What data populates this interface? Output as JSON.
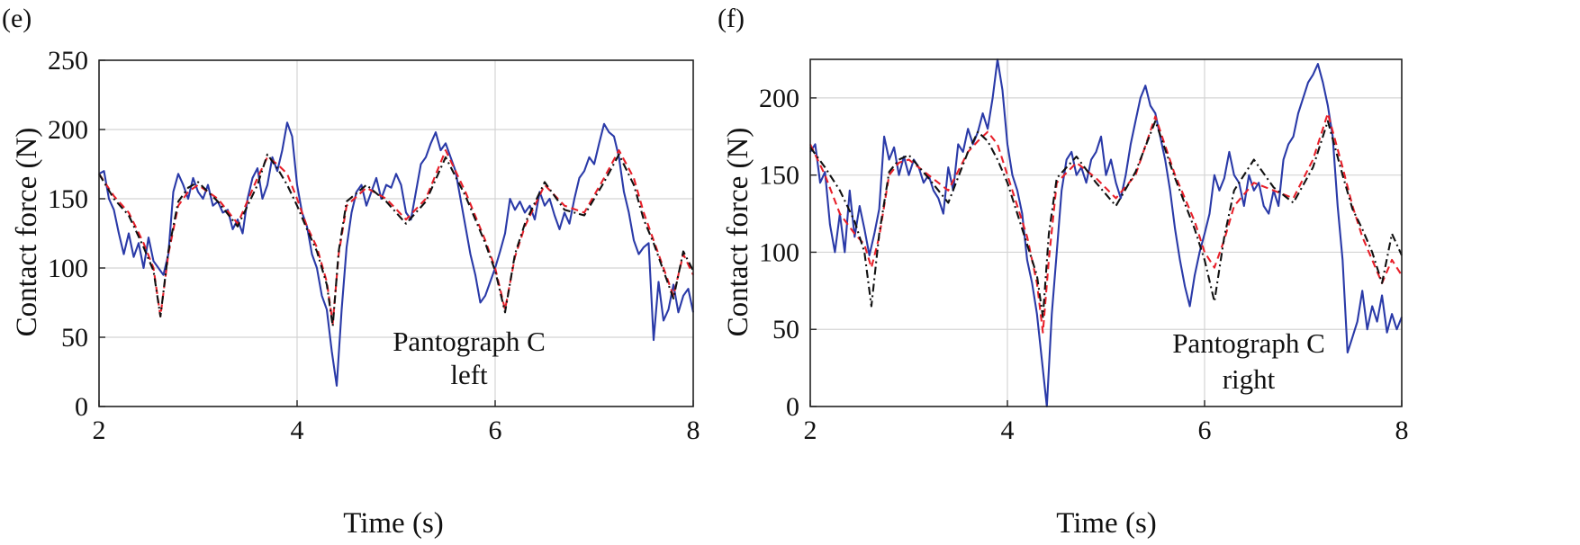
{
  "colors": {
    "series_solid": "#2a3aa8",
    "series_dashed": "#e8202a",
    "series_dashdot": "#111111",
    "grid": "#d4d4d4"
  },
  "chart_data": [
    {
      "panel_label": "(e)",
      "type": "line",
      "xlabel": "Time (s)",
      "ylabel": "Contact force (N)",
      "xlim": [
        2,
        8
      ],
      "ylim": [
        0,
        250
      ],
      "xticks": [
        2,
        4,
        6,
        8
      ],
      "yticks": [
        0,
        50,
        100,
        150,
        200,
        250
      ],
      "grid": true,
      "annotation": [
        "Pantograph C",
        "left"
      ],
      "series": [
        {
          "style": "solid",
          "x": [
            2.0,
            2.05,
            2.1,
            2.15,
            2.2,
            2.25,
            2.3,
            2.35,
            2.4,
            2.45,
            2.5,
            2.55,
            2.6,
            2.65,
            2.7,
            2.75,
            2.8,
            2.85,
            2.9,
            2.95,
            3.0,
            3.05,
            3.1,
            3.15,
            3.2,
            3.25,
            3.3,
            3.35,
            3.4,
            3.45,
            3.5,
            3.55,
            3.6,
            3.65,
            3.7,
            3.75,
            3.8,
            3.85,
            3.9,
            3.95,
            4.0,
            4.05,
            4.1,
            4.15,
            4.2,
            4.25,
            4.3,
            4.35,
            4.4,
            4.45,
            4.5,
            4.55,
            4.6,
            4.65,
            4.7,
            4.75,
            4.8,
            4.85,
            4.9,
            4.95,
            5.0,
            5.05,
            5.1,
            5.15,
            5.2,
            5.25,
            5.3,
            5.35,
            5.4,
            5.45,
            5.5,
            5.55,
            5.6,
            5.65,
            5.7,
            5.75,
            5.8,
            5.85,
            5.9,
            5.95,
            6.0,
            6.05,
            6.1,
            6.15,
            6.2,
            6.25,
            6.3,
            6.35,
            6.4,
            6.45,
            6.5,
            6.55,
            6.6,
            6.65,
            6.7,
            6.75,
            6.8,
            6.85,
            6.9,
            6.95,
            7.0,
            7.05,
            7.1,
            7.15,
            7.2,
            7.25,
            7.3,
            7.35,
            7.4,
            7.45,
            7.5,
            7.55,
            7.6,
            7.65,
            7.7,
            7.75,
            7.8,
            7.85,
            7.9,
            7.95,
            8.0
          ],
          "y": [
            168,
            170,
            150,
            142,
            125,
            110,
            125,
            108,
            118,
            100,
            122,
            105,
            100,
            95,
            110,
            155,
            168,
            160,
            150,
            165,
            155,
            150,
            160,
            145,
            148,
            140,
            142,
            128,
            135,
            125,
            150,
            165,
            172,
            150,
            160,
            180,
            170,
            185,
            205,
            195,
            160,
            140,
            130,
            110,
            100,
            80,
            70,
            40,
            15,
            70,
            115,
            140,
            155,
            160,
            145,
            155,
            165,
            150,
            160,
            158,
            168,
            160,
            140,
            135,
            155,
            175,
            180,
            190,
            198,
            185,
            190,
            180,
            170,
            150,
            130,
            110,
            95,
            75,
            80,
            90,
            100,
            112,
            125,
            150,
            142,
            148,
            140,
            145,
            135,
            155,
            145,
            150,
            138,
            128,
            140,
            132,
            150,
            165,
            170,
            180,
            175,
            190,
            204,
            198,
            195,
            180,
            155,
            140,
            120,
            110,
            115,
            118,
            48,
            90,
            62,
            70,
            88,
            68,
            80,
            85,
            68
          ]
        },
        {
          "style": "dashed",
          "x": [
            2.0,
            2.15,
            2.3,
            2.45,
            2.55,
            2.62,
            2.7,
            2.8,
            2.9,
            3.0,
            3.2,
            3.4,
            3.6,
            3.7,
            3.8,
            3.9,
            4.0,
            4.1,
            4.2,
            4.3,
            4.36,
            4.42,
            4.5,
            4.7,
            4.9,
            5.1,
            5.3,
            5.5,
            5.7,
            5.9,
            6.0,
            6.1,
            6.2,
            6.3,
            6.5,
            6.7,
            6.9,
            7.1,
            7.25,
            7.4,
            7.5,
            7.6,
            7.7,
            7.8,
            7.9,
            8.0
          ],
          "y": [
            168,
            152,
            140,
            118,
            100,
            65,
            110,
            145,
            155,
            160,
            150,
            132,
            165,
            180,
            175,
            168,
            150,
            130,
            115,
            90,
            60,
            110,
            145,
            158,
            150,
            135,
            150,
            185,
            155,
            120,
            100,
            70,
            108,
            130,
            160,
            145,
            140,
            165,
            185,
            165,
            140,
            120,
            100,
            80,
            110,
            95
          ]
        },
        {
          "style": "dashdot",
          "x": [
            2.0,
            2.15,
            2.3,
            2.45,
            2.55,
            2.62,
            2.7,
            2.8,
            2.9,
            3.0,
            3.2,
            3.4,
            3.6,
            3.7,
            3.8,
            3.9,
            4.0,
            4.1,
            4.2,
            4.3,
            4.36,
            4.42,
            4.5,
            4.7,
            4.9,
            5.1,
            5.3,
            5.5,
            5.7,
            5.9,
            6.0,
            6.1,
            6.2,
            6.3,
            6.5,
            6.7,
            6.9,
            7.1,
            7.25,
            7.4,
            7.5,
            7.6,
            7.7,
            7.8,
            7.9,
            8.0
          ],
          "y": [
            168,
            150,
            138,
            115,
            98,
            65,
            112,
            148,
            158,
            162,
            148,
            130,
            160,
            182,
            172,
            160,
            145,
            128,
            112,
            88,
            58,
            112,
            148,
            160,
            148,
            132,
            148,
            180,
            152,
            118,
            98,
            68,
            110,
            132,
            162,
            142,
            138,
            162,
            182,
            160,
            135,
            118,
            98,
            78,
            112,
            98
          ]
        }
      ]
    },
    {
      "panel_label": "(f)",
      "type": "line",
      "xlabel": "Time (s)",
      "ylabel": "Contact force (N)",
      "xlim": [
        2,
        8
      ],
      "ylim": [
        0,
        225
      ],
      "xticks": [
        2,
        4,
        6,
        8
      ],
      "yticks": [
        0,
        50,
        100,
        150,
        200
      ],
      "grid": true,
      "annotation": [
        "Pantograph C",
        "right"
      ],
      "series": [
        {
          "style": "solid",
          "x": [
            2.0,
            2.05,
            2.1,
            2.15,
            2.2,
            2.25,
            2.3,
            2.35,
            2.4,
            2.45,
            2.5,
            2.55,
            2.6,
            2.65,
            2.7,
            2.75,
            2.8,
            2.85,
            2.9,
            2.95,
            3.0,
            3.05,
            3.1,
            3.15,
            3.2,
            3.25,
            3.3,
            3.35,
            3.4,
            3.45,
            3.5,
            3.55,
            3.6,
            3.65,
            3.7,
            3.75,
            3.8,
            3.85,
            3.9,
            3.95,
            4.0,
            4.05,
            4.1,
            4.15,
            4.2,
            4.25,
            4.3,
            4.35,
            4.4,
            4.45,
            4.5,
            4.55,
            4.6,
            4.65,
            4.7,
            4.75,
            4.8,
            4.85,
            4.9,
            4.95,
            5.0,
            5.05,
            5.1,
            5.15,
            5.2,
            5.25,
            5.3,
            5.35,
            5.4,
            5.45,
            5.5,
            5.55,
            5.6,
            5.65,
            5.7,
            5.75,
            5.8,
            5.85,
            5.9,
            5.95,
            6.0,
            6.05,
            6.1,
            6.15,
            6.2,
            6.25,
            6.3,
            6.35,
            6.4,
            6.45,
            6.5,
            6.55,
            6.6,
            6.65,
            6.7,
            6.75,
            6.8,
            6.85,
            6.9,
            6.95,
            7.0,
            7.05,
            7.1,
            7.15,
            7.2,
            7.25,
            7.3,
            7.35,
            7.4,
            7.45,
            7.5,
            7.55,
            7.6,
            7.65,
            7.7,
            7.75,
            7.8,
            7.85,
            7.9,
            7.95,
            8.0
          ],
          "y": [
            165,
            170,
            145,
            152,
            118,
            100,
            125,
            100,
            140,
            110,
            130,
            115,
            98,
            112,
            128,
            175,
            160,
            168,
            150,
            162,
            150,
            160,
            155,
            145,
            150,
            140,
            135,
            125,
            155,
            140,
            170,
            165,
            180,
            170,
            178,
            190,
            180,
            200,
            225,
            205,
            170,
            150,
            140,
            125,
            95,
            80,
            60,
            30,
            0,
            60,
            100,
            140,
            160,
            165,
            150,
            155,
            145,
            160,
            165,
            175,
            150,
            160,
            145,
            135,
            150,
            170,
            185,
            200,
            208,
            195,
            190,
            175,
            160,
            140,
            115,
            95,
            78,
            65,
            85,
            100,
            112,
            125,
            150,
            140,
            148,
            165,
            150,
            145,
            130,
            150,
            140,
            145,
            130,
            125,
            140,
            130,
            160,
            170,
            175,
            190,
            200,
            210,
            215,
            222,
            210,
            195,
            175,
            130,
            95,
            35,
            45,
            55,
            75,
            50,
            65,
            55,
            72,
            48,
            60,
            50,
            58
          ]
        },
        {
          "style": "dashed",
          "x": [
            2.0,
            2.15,
            2.3,
            2.45,
            2.55,
            2.62,
            2.7,
            2.8,
            2.9,
            3.0,
            3.2,
            3.4,
            3.6,
            3.7,
            3.8,
            3.9,
            4.0,
            4.1,
            4.2,
            4.3,
            4.36,
            4.42,
            4.5,
            4.7,
            4.9,
            5.1,
            5.3,
            5.5,
            5.7,
            5.9,
            6.0,
            6.1,
            6.2,
            6.3,
            6.5,
            6.7,
            6.9,
            7.1,
            7.25,
            7.4,
            7.5,
            7.6,
            7.7,
            7.8,
            7.9,
            8.0
          ],
          "y": [
            170,
            150,
            125,
            112,
            105,
            90,
            110,
            150,
            158,
            160,
            150,
            140,
            165,
            172,
            178,
            170,
            150,
            130,
            110,
            80,
            48,
            95,
            145,
            158,
            148,
            135,
            150,
            188,
            150,
            120,
            100,
            90,
            108,
            130,
            145,
            140,
            135,
            160,
            190,
            155,
            130,
            110,
            95,
            80,
            95,
            85
          ]
        },
        {
          "style": "dashdot",
          "x": [
            2.0,
            2.15,
            2.3,
            2.45,
            2.55,
            2.62,
            2.7,
            2.8,
            2.9,
            3.0,
            3.2,
            3.4,
            3.6,
            3.7,
            3.8,
            3.9,
            4.0,
            4.1,
            4.2,
            4.3,
            4.36,
            4.42,
            4.5,
            4.7,
            4.9,
            5.1,
            5.3,
            5.5,
            5.7,
            5.9,
            6.0,
            6.1,
            6.2,
            6.3,
            6.5,
            6.7,
            6.9,
            7.1,
            7.25,
            7.4,
            7.5,
            7.6,
            7.7,
            7.8,
            7.9,
            8.0
          ],
          "y": [
            168,
            155,
            140,
            120,
            100,
            65,
            112,
            152,
            160,
            163,
            148,
            132,
            165,
            178,
            172,
            160,
            145,
            125,
            105,
            85,
            58,
            112,
            148,
            162,
            145,
            130,
            152,
            185,
            148,
            115,
            95,
            68,
            110,
            140,
            160,
            142,
            132,
            155,
            185,
            150,
            128,
            115,
            100,
            80,
            112,
            98
          ]
        }
      ]
    }
  ]
}
